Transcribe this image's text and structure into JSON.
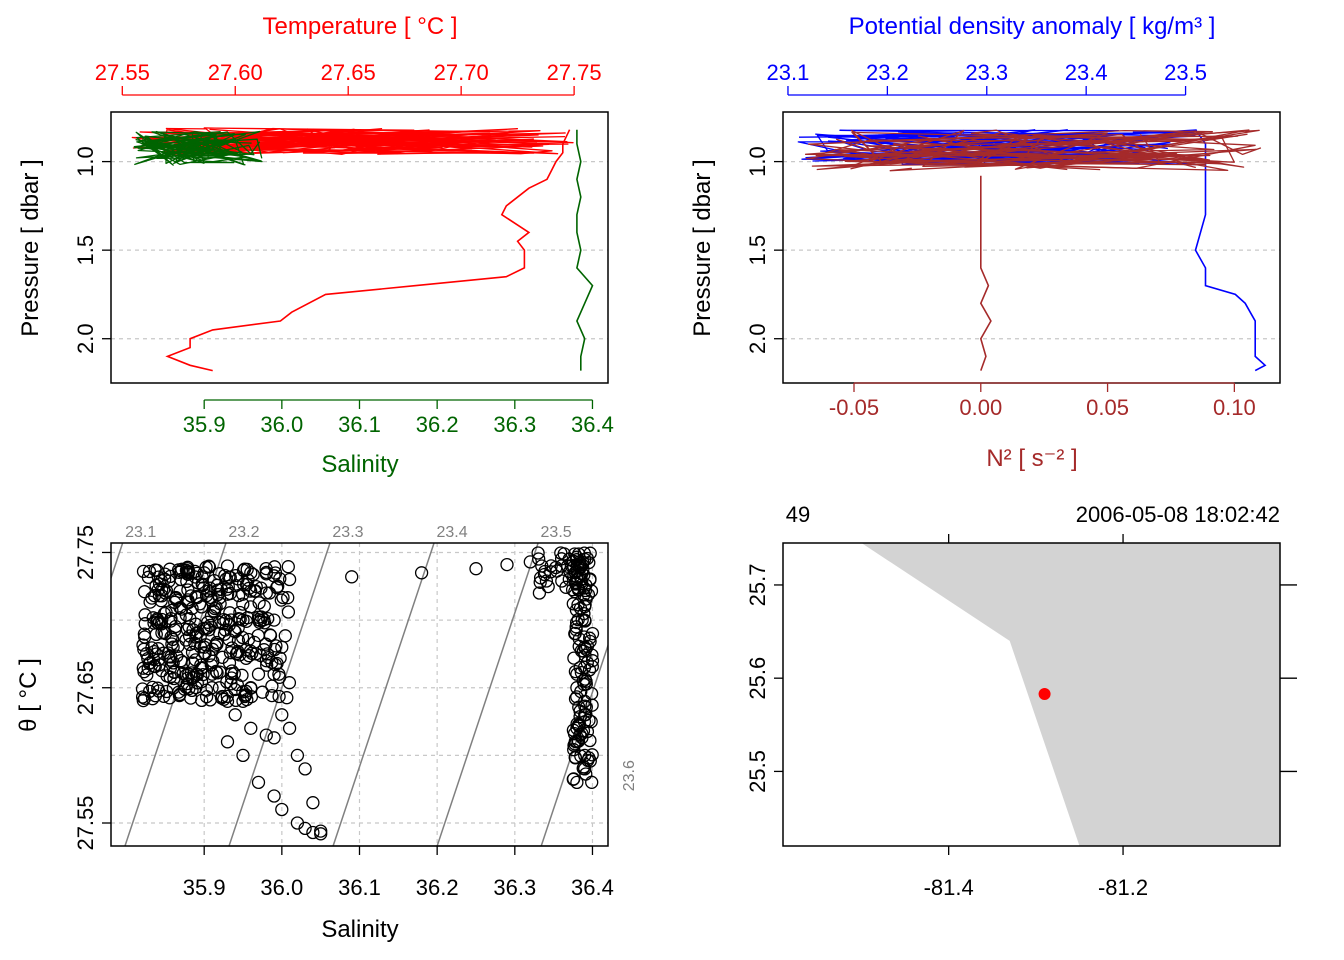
{
  "colors": {
    "temperature": "#ff0000",
    "salinity": "#006400",
    "density": "#0000ff",
    "n2": "#a52a2a",
    "land": "#d3d3d3",
    "station": "#ff0000",
    "grid": "#c8c8c8",
    "isopycnal": "#808080"
  },
  "chart_data": [
    {
      "type": "line",
      "title": "Temperature [ °C ]",
      "panel": "top-left",
      "x_top": {
        "label": "Temperature [ °C ]",
        "ticks": [
          "27.55",
          "27.60",
          "27.65",
          "27.70",
          "27.75"
        ],
        "lim": [
          27.545,
          27.765
        ]
      },
      "x_bottom": {
        "label": "Salinity",
        "ticks": [
          "35.9",
          "36.0",
          "36.1",
          "36.2",
          "36.3",
          "36.4"
        ],
        "lim": [
          35.78,
          36.42
        ]
      },
      "y": {
        "label": "Pressure [ dbar ]",
        "ticks": [
          "1.0",
          "1.5",
          "2.0"
        ],
        "lim": [
          2.25,
          0.72
        ],
        "reversed": true
      },
      "series": [
        {
          "name": "Temperature",
          "profile_pressure": [
            0.82,
            0.9,
            0.95,
            1.0,
            1.05,
            1.1,
            1.15,
            1.25,
            1.3,
            1.4,
            1.45,
            1.5,
            1.6,
            1.65,
            1.7,
            1.75,
            1.85,
            1.9,
            1.95,
            2.0,
            2.05,
            2.1,
            2.15,
            2.18
          ],
          "profile_values": [
            27.748,
            27.745,
            27.745,
            27.742,
            27.74,
            27.738,
            27.73,
            27.72,
            27.718,
            27.73,
            27.725,
            27.728,
            27.728,
            27.72,
            27.68,
            27.64,
            27.625,
            27.62,
            27.59,
            27.58,
            27.58,
            27.57,
            27.58,
            27.59
          ]
        },
        {
          "name": "Salinity",
          "profile_pressure": [
            0.82,
            0.9,
            1.0,
            1.1,
            1.2,
            1.3,
            1.4,
            1.5,
            1.6,
            1.7,
            1.8,
            1.9,
            2.0,
            2.1,
            2.18
          ],
          "profile_values": [
            36.38,
            36.38,
            36.385,
            36.38,
            36.385,
            36.38,
            36.38,
            36.385,
            36.38,
            36.4,
            36.39,
            36.38,
            36.39,
            36.385,
            36.385
          ]
        }
      ]
    },
    {
      "type": "line",
      "panel": "top-right",
      "x_top": {
        "label": "Potential density anomaly [ kg/m³ ]",
        "ticks": [
          "23.1",
          "23.2",
          "23.3",
          "23.4",
          "23.5"
        ],
        "lim": [
          23.095,
          23.595
        ]
      },
      "x_bottom": {
        "label": "N² [ s⁻² ]",
        "ticks": [
          "-0.05",
          "0.00",
          "0.05",
          "0.10"
        ],
        "lim": [
          -0.078,
          0.118
        ]
      },
      "y": {
        "label": "Pressure [ dbar ]",
        "ticks": [
          "1.0",
          "1.5",
          "2.0"
        ],
        "lim": [
          2.25,
          0.72
        ],
        "reversed": true
      },
      "series": [
        {
          "name": "Potential density anomaly",
          "profile_pressure": [
            0.82,
            0.9,
            1.0,
            1.1,
            1.2,
            1.3,
            1.5,
            1.6,
            1.7,
            1.75,
            1.8,
            1.85,
            1.9,
            2.0,
            2.1,
            2.15,
            2.18
          ],
          "profile_values": [
            23.51,
            23.52,
            23.52,
            23.52,
            23.52,
            23.52,
            23.51,
            23.52,
            23.52,
            23.55,
            23.56,
            23.565,
            23.57,
            23.57,
            23.57,
            23.58,
            23.57
          ]
        },
        {
          "name": "N2",
          "profile_pressure": [
            1.08,
            1.2,
            1.4,
            1.6,
            1.7,
            1.8,
            1.9,
            2.0,
            2.1,
            2.18
          ],
          "profile_values": [
            0.0,
            0.0,
            0.0,
            0.0,
            0.003,
            0.0,
            0.004,
            0.0,
            0.002,
            0.0
          ]
        }
      ]
    },
    {
      "type": "scatter",
      "panel": "bottom-left",
      "xlabel": "Salinity",
      "ylabel": "θ [ °C ]",
      "x_ticks": [
        "35.9",
        "36.0",
        "36.1",
        "36.2",
        "36.3",
        "36.4"
      ],
      "y_ticks": [
        "27.55",
        "27.65",
        "27.75"
      ],
      "xlim": [
        35.78,
        36.42
      ],
      "ylim": [
        27.533,
        27.757
      ],
      "isopycnal_labels": [
        "23.1",
        "23.2",
        "23.3",
        "23.4",
        "23.5",
        "23.6"
      ],
      "points": [
        [
          36.01,
          27.73
        ],
        [
          36.09,
          27.732
        ],
        [
          36.18,
          27.735
        ],
        [
          36.25,
          27.738
        ],
        [
          36.29,
          27.741
        ],
        [
          36.32,
          27.743
        ],
        [
          35.99,
          27.7
        ],
        [
          36.0,
          27.68
        ],
        [
          35.98,
          27.67
        ],
        [
          35.99,
          27.66
        ],
        [
          35.96,
          27.65
        ],
        [
          35.95,
          27.64
        ],
        [
          35.94,
          27.63
        ],
        [
          35.96,
          27.62
        ],
        [
          35.98,
          27.615
        ],
        [
          35.99,
          27.613
        ],
        [
          36.01,
          27.62
        ],
        [
          36.0,
          27.63
        ],
        [
          36.02,
          27.6
        ],
        [
          36.03,
          27.59
        ],
        [
          35.93,
          27.61
        ],
        [
          35.95,
          27.6
        ],
        [
          35.97,
          27.58
        ],
        [
          35.99,
          27.57
        ],
        [
          36.0,
          27.56
        ],
        [
          36.04,
          27.565
        ],
        [
          36.02,
          27.55
        ],
        [
          36.03,
          27.546
        ],
        [
          36.05,
          27.544
        ],
        [
          36.05,
          27.542
        ],
        [
          36.04,
          27.543
        ],
        [
          35.88,
          27.66
        ],
        [
          35.87,
          27.67
        ],
        [
          35.86,
          27.68
        ],
        [
          35.85,
          27.69
        ],
        [
          35.84,
          27.7
        ],
        [
          35.85,
          27.72
        ],
        [
          35.87,
          27.73
        ],
        [
          35.9,
          27.735
        ],
        [
          35.93,
          27.74
        ],
        [
          35.96,
          27.735
        ],
        [
          35.98,
          27.72
        ],
        [
          35.95,
          27.7
        ],
        [
          35.92,
          27.69
        ],
        [
          35.9,
          27.68
        ],
        [
          35.89,
          27.66
        ],
        [
          35.91,
          27.65
        ],
        [
          35.93,
          27.64
        ],
        [
          35.97,
          27.66
        ],
        [
          36.39,
          27.7
        ],
        [
          36.39,
          27.68
        ],
        [
          36.38,
          27.66
        ],
        [
          36.39,
          27.64
        ],
        [
          36.38,
          27.62
        ],
        [
          36.39,
          27.6
        ],
        [
          36.38,
          27.58
        ],
        [
          36.4,
          27.67
        ],
        [
          36.36,
          27.74
        ],
        [
          36.37,
          27.745
        ],
        [
          36.38,
          27.73
        ],
        [
          36.39,
          27.71
        ],
        [
          36.4,
          27.69
        ],
        [
          36.38,
          27.65
        ],
        [
          36.39,
          27.63
        ],
        [
          36.38,
          27.61
        ],
        [
          36.39,
          27.59
        ]
      ]
    },
    {
      "type": "map",
      "panel": "bottom-right",
      "top_left_label": "49",
      "top_right_label": "2006-05-08 18:02:42",
      "x_ticks": [
        "-81.4",
        "-81.2"
      ],
      "y_ticks": [
        "25.5",
        "25.6",
        "25.7"
      ],
      "xlim": [
        -81.59,
        -81.02
      ],
      "ylim": [
        25.42,
        25.745
      ],
      "land_lon": [
        -81.5,
        -81.02,
        -81.02,
        -81.25,
        -81.33
      ],
      "land_lat": [
        25.745,
        25.745,
        25.42,
        25.42,
        25.64
      ],
      "station_lon": -81.29,
      "station_lat": 25.583
    }
  ]
}
